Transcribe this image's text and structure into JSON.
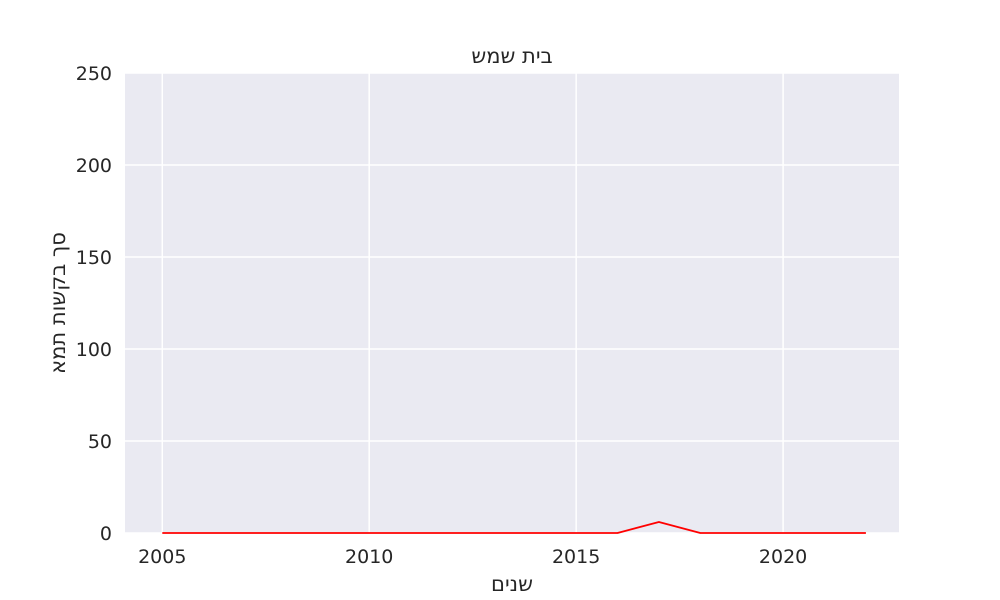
{
  "chart_data": {
    "type": "line",
    "title": "בית שמש",
    "xlabel": "שנים",
    "ylabel": "סך בקשות תמא",
    "xlim": [
      2004.1,
      2022.8
    ],
    "ylim": [
      0,
      250
    ],
    "xticks": [
      2005,
      2010,
      2015,
      2020
    ],
    "yticks": [
      0,
      50,
      100,
      150,
      200,
      250
    ],
    "grid": true,
    "series": [
      {
        "color": "#ff0000",
        "x": [
          2005,
          2006,
          2007,
          2008,
          2009,
          2010,
          2011,
          2012,
          2013,
          2014,
          2015,
          2016,
          2017,
          2018,
          2019,
          2020,
          2021,
          2022
        ],
        "y": [
          0,
          0,
          0,
          0,
          0,
          0,
          0,
          0,
          0,
          0,
          0,
          0,
          6,
          0,
          0,
          0,
          0,
          0
        ]
      }
    ],
    "colors": {
      "plot_background": "#eaeaf2",
      "grid": "#ffffff",
      "text": "#262626"
    }
  }
}
